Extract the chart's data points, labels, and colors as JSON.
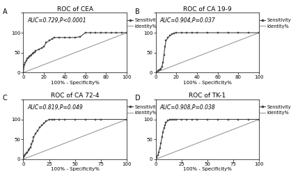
{
  "panels": [
    {
      "label": "A",
      "title": "ROC of CEA",
      "auc_text": "AUC=0.729,P<0.0001",
      "roc_x": [
        0,
        1,
        2,
        3,
        4,
        5,
        6,
        7,
        8,
        9,
        10,
        11,
        12,
        15,
        18,
        20,
        22,
        25,
        28,
        30,
        35,
        40,
        45,
        50,
        55,
        60,
        65,
        70,
        75,
        80,
        85,
        90,
        95,
        100
      ],
      "roc_y": [
        0,
        20,
        25,
        30,
        35,
        38,
        40,
        42,
        45,
        48,
        50,
        52,
        55,
        58,
        62,
        65,
        75,
        80,
        85,
        88,
        88,
        88,
        88,
        88,
        90,
        100,
        100,
        100,
        100,
        100,
        100,
        100,
        100,
        100
      ],
      "xlim": [
        0,
        100
      ],
      "ylim": [
        0,
        150
      ],
      "xticks": [
        0,
        20,
        40,
        60,
        80,
        100
      ],
      "yticks": [
        0,
        50,
        100,
        150
      ]
    },
    {
      "label": "B",
      "title": "ROC of CA 19-9",
      "auc_text": "AUC=0.904,P=0.037",
      "roc_x": [
        0,
        1,
        2,
        3,
        4,
        5,
        6,
        7,
        8,
        9,
        10,
        12,
        14,
        16,
        18,
        20,
        25,
        30,
        35,
        40,
        50,
        60,
        70,
        80,
        90,
        100
      ],
      "roc_y": [
        0,
        2,
        4,
        6,
        8,
        10,
        15,
        25,
        45,
        65,
        80,
        88,
        93,
        97,
        99,
        100,
        100,
        100,
        100,
        100,
        100,
        100,
        100,
        100,
        100,
        100
      ],
      "xlim": [
        0,
        100
      ],
      "ylim": [
        0,
        150
      ],
      "xticks": [
        0,
        20,
        40,
        60,
        80,
        100
      ],
      "yticks": [
        0,
        50,
        100,
        150
      ]
    },
    {
      "label": "C",
      "title": "ROC of CA 72-4",
      "auc_text": "AUC=0.819,P=0.049",
      "roc_x": [
        0,
        1,
        2,
        3,
        4,
        5,
        6,
        7,
        8,
        9,
        10,
        12,
        14,
        16,
        18,
        20,
        22,
        25,
        28,
        30,
        35,
        40,
        50,
        60,
        70,
        75,
        100
      ],
      "roc_y": [
        0,
        8,
        12,
        15,
        18,
        22,
        26,
        30,
        38,
        45,
        55,
        65,
        72,
        80,
        85,
        90,
        95,
        100,
        100,
        100,
        100,
        100,
        100,
        100,
        100,
        100,
        100
      ],
      "xlim": [
        0,
        100
      ],
      "ylim": [
        0,
        150
      ],
      "xticks": [
        0,
        25,
        50,
        75,
        100
      ],
      "yticks": [
        0,
        50,
        100,
        150
      ]
    },
    {
      "label": "D",
      "title": "ROC of TK-1",
      "auc_text": "AUC=0.908,P=0.038",
      "roc_x": [
        0,
        1,
        2,
        3,
        4,
        5,
        6,
        7,
        8,
        9,
        10,
        12,
        14,
        16,
        18,
        20,
        25,
        30,
        35,
        40,
        50,
        60,
        70,
        80,
        90,
        100
      ],
      "roc_y": [
        0,
        5,
        10,
        18,
        28,
        40,
        55,
        68,
        78,
        86,
        92,
        97,
        99,
        100,
        100,
        100,
        100,
        100,
        100,
        100,
        100,
        100,
        100,
        100,
        100,
        100
      ],
      "xlim": [
        0,
        100
      ],
      "ylim": [
        0,
        150
      ],
      "xticks": [
        0,
        25,
        50,
        75,
        100
      ],
      "yticks": [
        0,
        50,
        100,
        150
      ]
    }
  ],
  "line_color": "#444444",
  "identity_color": "#999999",
  "marker": "s",
  "markersize": 2.0,
  "linewidth": 0.8,
  "background_color": "#ffffff",
  "auc_fontsize": 5.5,
  "title_fontsize": 6.5,
  "tick_fontsize": 5.0,
  "label_fontsize": 5.0,
  "legend_fontsize": 4.8,
  "panel_label_fontsize": 7.0
}
